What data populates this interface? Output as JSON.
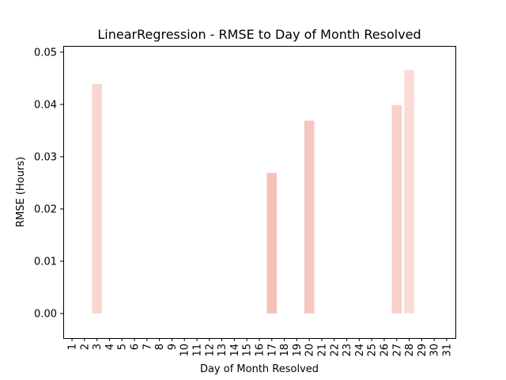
{
  "chart_data": {
    "type": "bar",
    "title": "LinearRegression - RMSE to Day of Month Resolved",
    "xlabel": "Day of Month Resolved",
    "ylabel": "RMSE (Hours)",
    "categories": [
      "1",
      "2",
      "3",
      "4",
      "5",
      "6",
      "7",
      "8",
      "9",
      "10",
      "11",
      "12",
      "13",
      "14",
      "15",
      "16",
      "17",
      "18",
      "19",
      "20",
      "21",
      "22",
      "23",
      "24",
      "25",
      "26",
      "27",
      "28",
      "29",
      "30",
      "31"
    ],
    "bars": [
      {
        "day": "3",
        "value": 0.0439,
        "color": "#f9d6d0"
      },
      {
        "day": "17",
        "value": 0.0269,
        "color": "#f4c1b9"
      },
      {
        "day": "20",
        "value": 0.0369,
        "color": "#f5c7c0"
      },
      {
        "day": "27",
        "value": 0.0399,
        "color": "#f8d0c9"
      },
      {
        "day": "28",
        "value": 0.0466,
        "color": "#fadbd6"
      }
    ],
    "yticks": [
      0.0,
      0.01,
      0.02,
      0.03,
      0.04,
      0.05
    ],
    "ytick_labels": [
      "0.00",
      "0.01",
      "0.02",
      "0.03",
      "0.04",
      "0.05"
    ],
    "ylim": [
      -0.0047,
      0.0512
    ],
    "xlim": [
      0.3,
      31.7
    ],
    "grid": false
  }
}
